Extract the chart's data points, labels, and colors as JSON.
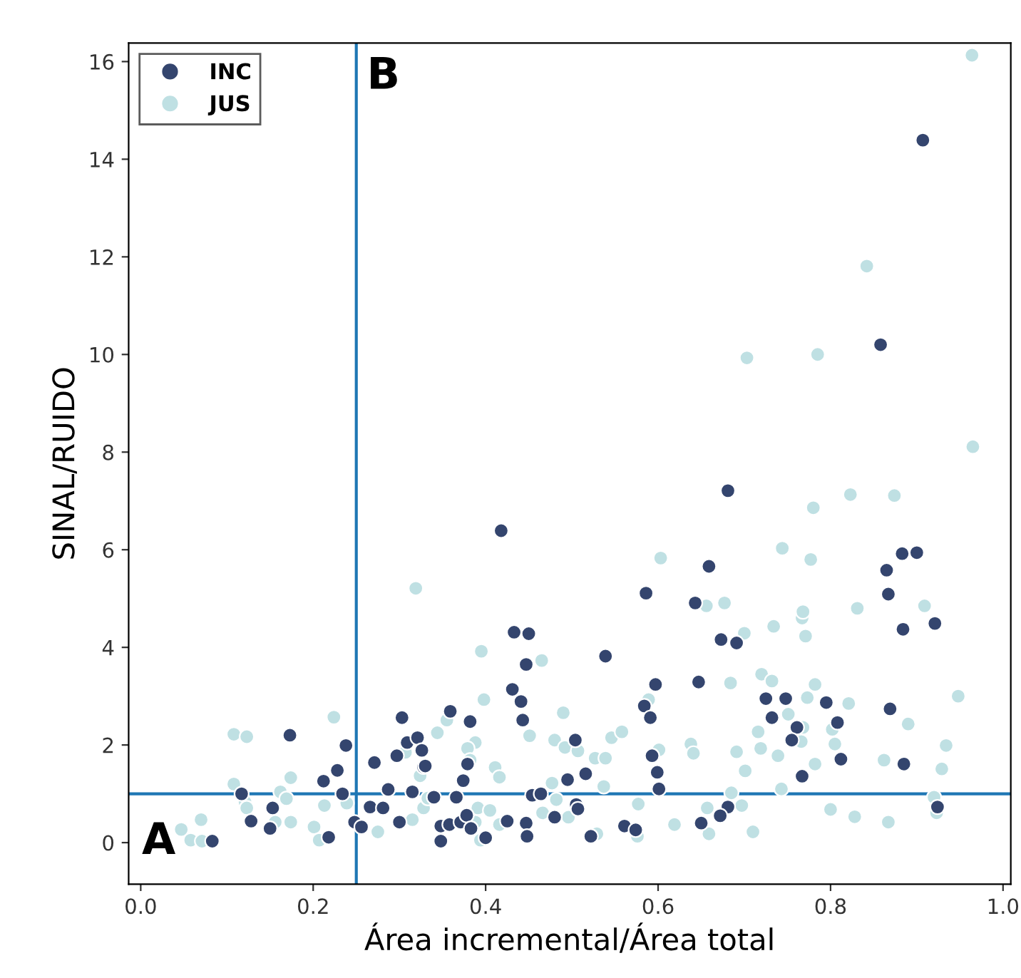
{
  "chart_data": {
    "type": "scatter",
    "xlabel": "Área incremental/Área total",
    "ylabel": "SINAL/RUIDO",
    "xlim": [
      -0.014,
      1.009
    ],
    "ylim": [
      -0.85,
      16.38
    ],
    "xticks": [
      {
        "value": 0.0,
        "label": "0.0"
      },
      0.2,
      0.4,
      0.6,
      0.8,
      {
        "value": 1.0,
        "label": "1.0"
      }
    ],
    "yticks": [
      0,
      2,
      4,
      6,
      8,
      10,
      12,
      14,
      16
    ],
    "grid": false,
    "legend": "top left",
    "marker": "circle",
    "ref_lines": [
      {
        "axis": "x",
        "value": 0.25,
        "color": "#1f77b4"
      },
      {
        "axis": "y",
        "value": 1,
        "color": "#1f77b4"
      }
    ],
    "annotations": [
      "A",
      "B"
    ],
    "series": [
      {
        "name": "INC",
        "color": "#34456e",
        "x": [
          0.907,
          0.858,
          0.681,
          0.418,
          0.659,
          0.883,
          0.9,
          0.865,
          0.303,
          0.173,
          0.238,
          0.309,
          0.321,
          0.326,
          0.297,
          0.271,
          0.328,
          0.228,
          0.212,
          0.287,
          0.315,
          0.117,
          0.234,
          0.153,
          0.266,
          0.281,
          0.128,
          0.15,
          0.083,
          0.218,
          0.248,
          0.256,
          0.3,
          0.586,
          0.643,
          0.433,
          0.45,
          0.447,
          0.539,
          0.431,
          0.441,
          0.443,
          0.597,
          0.647,
          0.584,
          0.591,
          0.359,
          0.382,
          0.504,
          0.33,
          0.379,
          0.374,
          0.593,
          0.599,
          0.601,
          0.495,
          0.516,
          0.366,
          0.34,
          0.454,
          0.464,
          0.505,
          0.507,
          0.48,
          0.65,
          0.348,
          0.358,
          0.371,
          0.378,
          0.383,
          0.348,
          0.4,
          0.425,
          0.447,
          0.448,
          0.522,
          0.561,
          0.574,
          0.867,
          0.884,
          0.921,
          0.673,
          0.691,
          0.725,
          0.748,
          0.795,
          0.732,
          0.761,
          0.808,
          0.869,
          0.755,
          0.812,
          0.885,
          0.767,
          0.681,
          0.672,
          0.924
        ],
        "values": [
          14.39,
          10.2,
          7.21,
          6.39,
          5.66,
          5.92,
          5.94,
          5.58,
          2.56,
          2.2,
          1.99,
          2.05,
          2.15,
          1.89,
          1.78,
          1.64,
          1.55,
          1.48,
          1.26,
          1.09,
          1.04,
          1.0,
          1.0,
          0.71,
          0.73,
          0.71,
          0.44,
          0.29,
          0.03,
          0.11,
          0.42,
          0.32,
          0.42,
          5.11,
          4.91,
          4.31,
          4.28,
          3.65,
          3.82,
          3.14,
          2.89,
          2.51,
          3.24,
          3.29,
          2.8,
          2.56,
          2.69,
          2.48,
          2.1,
          1.57,
          1.61,
          1.27,
          1.78,
          1.44,
          1.1,
          1.29,
          1.41,
          0.93,
          0.93,
          0.97,
          1.0,
          0.78,
          0.69,
          0.52,
          0.4,
          0.34,
          0.37,
          0.42,
          0.56,
          0.29,
          0.03,
          0.1,
          0.44,
          0.4,
          0.13,
          0.13,
          0.34,
          0.26,
          5.09,
          4.37,
          4.49,
          4.16,
          4.09,
          2.95,
          2.95,
          2.87,
          2.56,
          2.36,
          2.46,
          2.74,
          2.1,
          1.71,
          1.61,
          1.36,
          0.73,
          0.55,
          0.73
        ]
      },
      {
        "name": "JUS",
        "color": "#bfe0e3",
        "x": [
          0.964,
          0.842,
          0.703,
          0.785,
          0.965,
          0.78,
          0.823,
          0.874,
          0.603,
          0.744,
          0.777,
          0.319,
          0.224,
          0.108,
          0.123,
          0.307,
          0.174,
          0.108,
          0.324,
          0.162,
          0.169,
          0.121,
          0.123,
          0.213,
          0.239,
          0.328,
          0.156,
          0.174,
          0.07,
          0.047,
          0.058,
          0.071,
          0.201,
          0.207,
          0.275,
          0.315,
          0.656,
          0.395,
          0.465,
          0.398,
          0.589,
          0.49,
          0.355,
          0.344,
          0.451,
          0.388,
          0.379,
          0.48,
          0.492,
          0.507,
          0.546,
          0.558,
          0.382,
          0.411,
          0.416,
          0.527,
          0.539,
          0.601,
          0.638,
          0.641,
          0.477,
          0.537,
          0.333,
          0.482,
          0.391,
          0.405,
          0.466,
          0.496,
          0.577,
          0.619,
          0.657,
          0.388,
          0.394,
          0.416,
          0.529,
          0.576,
          0.659,
          0.909,
          0.831,
          0.767,
          0.768,
          0.771,
          0.734,
          0.7,
          0.677,
          0.684,
          0.72,
          0.732,
          0.782,
          0.821,
          0.773,
          0.751,
          0.768,
          0.802,
          0.948,
          0.89,
          0.716,
          0.766,
          0.805,
          0.719,
          0.691,
          0.739,
          0.862,
          0.934,
          0.929,
          0.701,
          0.782,
          0.743,
          0.685,
          0.697,
          0.71,
          0.8,
          0.828,
          0.867,
          0.92,
          0.923
        ],
        "values": [
          16.13,
          11.81,
          9.93,
          10.0,
          8.11,
          6.86,
          7.13,
          7.11,
          5.83,
          6.03,
          5.8,
          5.21,
          2.57,
          2.22,
          2.17,
          1.85,
          1.33,
          1.2,
          1.37,
          1.04,
          0.9,
          0.83,
          0.71,
          0.76,
          0.81,
          0.71,
          0.42,
          0.42,
          0.47,
          0.27,
          0.05,
          0.03,
          0.32,
          0.05,
          0.22,
          0.47,
          4.85,
          3.92,
          3.73,
          2.93,
          2.93,
          2.66,
          2.51,
          2.25,
          2.19,
          2.05,
          1.93,
          2.1,
          1.95,
          1.88,
          2.15,
          2.27,
          1.69,
          1.54,
          1.34,
          1.73,
          1.73,
          1.9,
          2.02,
          1.83,
          1.22,
          1.15,
          0.91,
          0.88,
          0.71,
          0.66,
          0.61,
          0.52,
          0.79,
          0.37,
          0.71,
          0.42,
          0.05,
          0.37,
          0.18,
          0.13,
          0.18,
          4.85,
          4.8,
          4.6,
          4.73,
          4.23,
          4.43,
          4.29,
          4.91,
          3.27,
          3.45,
          3.31,
          3.24,
          2.85,
          2.97,
          2.63,
          2.36,
          2.32,
          3.0,
          2.43,
          2.27,
          2.07,
          2.02,
          1.93,
          1.86,
          1.78,
          1.69,
          1.99,
          1.51,
          1.47,
          1.61,
          1.1,
          1.02,
          0.76,
          0.22,
          0.68,
          0.53,
          0.42,
          0.93,
          0.61
        ]
      }
    ]
  }
}
